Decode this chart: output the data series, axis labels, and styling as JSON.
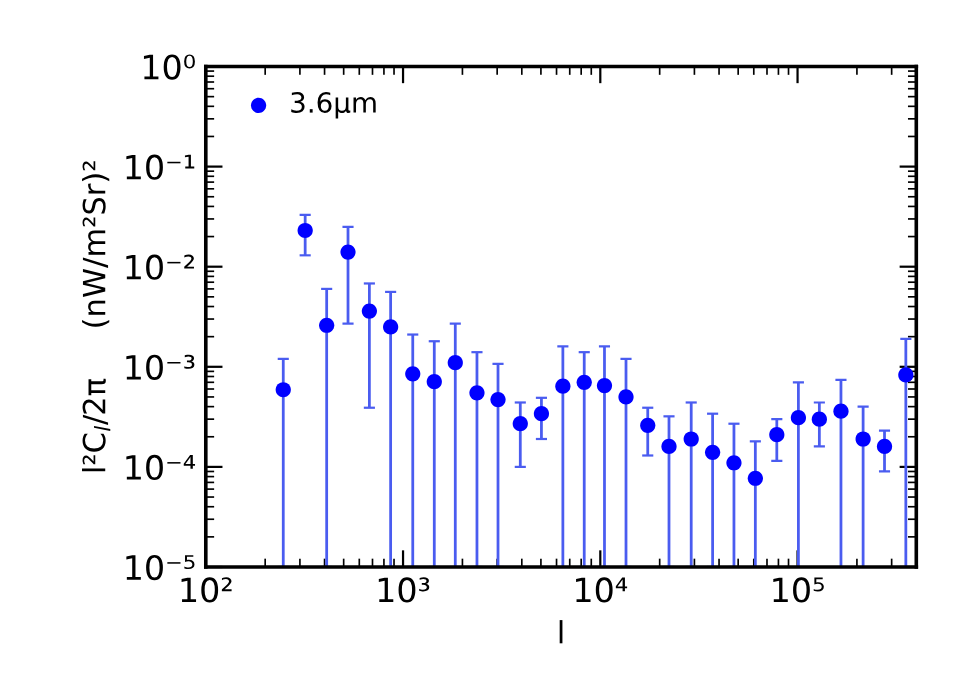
{
  "chart_data": {
    "type": "scatter",
    "xlabel": "l",
    "ylabel": "l²C$_{l}$/2π     (nW/m²Sr)²",
    "log": "xy",
    "legend": "top left",
    "marker": "circle",
    "grid": false,
    "xlim": [
      100,
      400000
    ],
    "xticks": [
      {
        "value": 100,
        "label": "10²"
      },
      {
        "value": 1000,
        "label": "10³"
      },
      {
        "value": 10000,
        "label": "10⁴"
      },
      {
        "value": 100000,
        "label": "10⁵"
      }
    ],
    "ylim": [
      1e-05,
      1
    ],
    "yticks": [
      {
        "value": 1e-05,
        "label": "10⁻⁵"
      },
      {
        "value": 0.0001,
        "label": "10⁻⁴"
      },
      {
        "value": 0.001,
        "label": "10⁻³"
      },
      {
        "value": 0.01,
        "label": "10⁻²"
      },
      {
        "value": 0.1,
        "label": "10⁻¹"
      },
      {
        "value": 1,
        "label": "10⁰"
      }
    ],
    "series": [
      {
        "name": "3.6μm",
        "color": "#0000ff",
        "x": [
          247,
          319,
          410,
          526,
          675,
          865,
          1120,
          1440,
          1840,
          2370,
          3030,
          3930,
          5030,
          6460,
          8290,
          10500,
          13500,
          17400,
          22300,
          28900,
          37100,
          47600,
          61100,
          78500,
          101000,
          129000,
          166000,
          215000,
          276000,
          354000
        ],
        "values": [
          0.00059,
          0.023,
          0.0026,
          0.014,
          0.0036,
          0.0025,
          0.00085,
          0.00071,
          0.0011,
          0.00055,
          0.00047,
          0.00027,
          0.00034,
          0.00064,
          0.0007,
          0.00065,
          0.0005,
          0.00026,
          0.00016,
          0.00019,
          0.00014,
          0.00011,
          7.7e-05,
          0.00021,
          0.00031,
          0.0003,
          0.00036,
          0.00019,
          0.00016,
          0.00083
        ],
        "errors": [
          [
            1e-05,
            0.0012
          ],
          [
            0.013,
            0.033
          ],
          [
            1e-05,
            0.006
          ],
          [
            0.0027,
            0.025
          ],
          [
            0.00039,
            0.0068
          ],
          [
            1e-05,
            0.0056
          ],
          [
            1e-05,
            0.0021
          ],
          [
            1e-05,
            0.0018
          ],
          [
            1e-05,
            0.0027
          ],
          [
            1e-05,
            0.0014
          ],
          [
            1e-05,
            0.00107
          ],
          [
            0.0001,
            0.00044
          ],
          [
            0.00019,
            0.00049
          ],
          [
            1e-05,
            0.0016
          ],
          [
            1e-05,
            0.0014
          ],
          [
            1e-05,
            0.0016
          ],
          [
            1e-05,
            0.0012
          ],
          [
            0.00013,
            0.00039
          ],
          [
            1e-05,
            0.00032
          ],
          [
            1e-05,
            0.00044
          ],
          [
            1e-05,
            0.00034
          ],
          [
            1e-05,
            0.00027
          ],
          [
            1e-05,
            0.00018
          ],
          [
            0.000115,
            0.0003
          ],
          [
            1e-05,
            0.0007
          ],
          [
            0.00016,
            0.00044
          ],
          [
            1e-05,
            0.00074
          ],
          [
            1e-05,
            0.0004
          ],
          [
            9e-05,
            0.00023
          ],
          [
            1e-05,
            0.0019
          ]
        ]
      }
    ]
  }
}
